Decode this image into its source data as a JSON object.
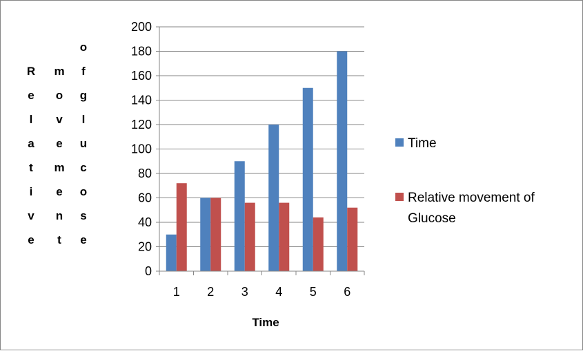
{
  "chart_data": {
    "type": "bar",
    "categories": [
      "1",
      "2",
      "3",
      "4",
      "5",
      "6"
    ],
    "series": [
      {
        "name": "Time",
        "color": "#4F81BD",
        "values": [
          30,
          60,
          90,
          120,
          150,
          180
        ]
      },
      {
        "name": "Relative movement of Glucose",
        "legend_lines": [
          "Relative movement of",
          "Glucose"
        ],
        "color": "#C0504D",
        "values": [
          72,
          60,
          56,
          56,
          44,
          52
        ]
      }
    ],
    "xlabel": "Time",
    "ylabel_columns": [
      "Relative",
      "movement",
      "of glucose"
    ],
    "ylim": [
      0,
      200
    ],
    "yticks": [
      0,
      20,
      40,
      60,
      80,
      100,
      120,
      140,
      160,
      180,
      200
    ],
    "grid": true,
    "legend_position": "right"
  }
}
